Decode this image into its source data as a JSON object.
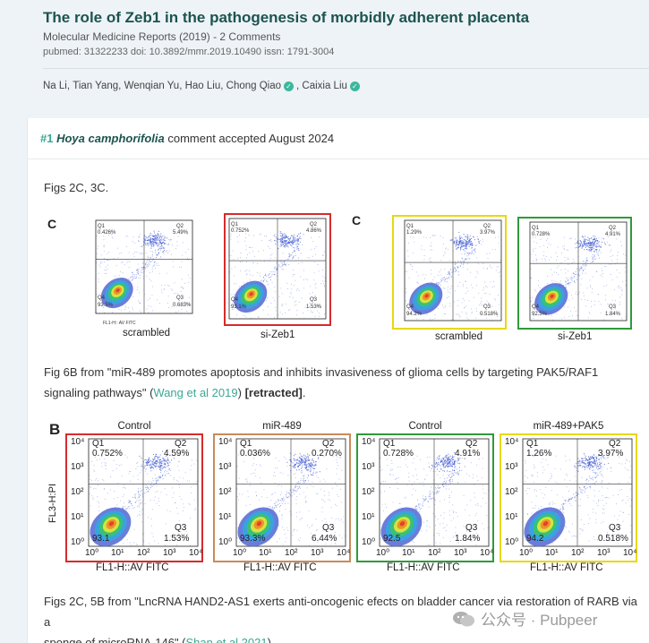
{
  "paper": {
    "title": "The role of Zeb1 in the pathogenesis of morbidly adherent placenta",
    "meta1": "Molecular Medicine Reports (2019) - 2 Comments",
    "meta2": "pubmed: 31322233  doi: 10.3892/mmr.2019.10490  issn: 1791-3004",
    "authors": [
      "Na Li,",
      "Tian Yang,",
      "Wenqian Yu,",
      "Hao Liu,",
      "Chong Qiao",
      ", Caixia Liu"
    ]
  },
  "comment": {
    "number": "#1",
    "user": "Hoya camphorifolia",
    "status": "comment accepted August 2024",
    "p1": "Figs 2C, 3C.",
    "p2a": "Fig 6B from \"miR-489 promotes apoptosis and inhibits invasiveness of glioma cells by targeting PAK5/RAF1",
    "p2b": "signaling pathways\" (",
    "p2link": "Wang et al 2019",
    "p2c": ") ",
    "p2bold": "[retracted]",
    "p2d": ".",
    "p3a": "Figs 2C, 5B from \"LncRNA HAND2-AS1 exerts anti-oncogenic efects on bladder cancer via restoration of RARB via a",
    "p3b": "sponge of microRNA-146\" (",
    "p3link": "Shan et al 2021",
    "p3c": ")."
  },
  "figure1": {
    "letterLeft": "C",
    "letterRight": "C",
    "panels": [
      {
        "caption": "scrambled",
        "q1": "Q1",
        "q1v": "0.426%",
        "q2": "Q2",
        "q2v": "5.49%",
        "q3": "Q3",
        "q3v": "0.683%",
        "q4": "Q4",
        "q4v": "93.5%",
        "border": "none"
      },
      {
        "caption": "si-Zeb1",
        "q1": "Q1",
        "q1v": "0.752%",
        "q2": "Q2",
        "q2v": "4.86%",
        "q3": "Q3",
        "q3v": "1.53%",
        "q4": "Q4",
        "q4v": "93.1%",
        "border": "#d62b2b"
      },
      {
        "caption": "scrambled",
        "q1": "Q1",
        "q1v": "1.29%",
        "q2": "Q2",
        "q2v": "3.97%",
        "q3": "Q3",
        "q3v": "0.518%",
        "q4": "Q4",
        "q4v": "94.2%",
        "border": "#e8d80e"
      },
      {
        "caption": "si-Zeb1",
        "q1": "Q1",
        "q1v": "0.728%",
        "q2": "Q2",
        "q2v": "4.91%",
        "q3": "Q3",
        "q3v": "1.84%",
        "q4": "Q4",
        "q4v": "92.5%",
        "border": "#2f9a3a"
      }
    ],
    "xaxis": "FL1-H:: AV FITC",
    "yaxis": "FL3-H:: PI"
  },
  "figure2": {
    "letter": "B",
    "panels": [
      {
        "title": "Control",
        "q1": "Q1",
        "q1v": "0.752%",
        "q2": "Q2",
        "q2v": "4.59%",
        "q3": "Q3",
        "q3v": "1.53%",
        "q4v": "93.1",
        "border": "#d62b2b"
      },
      {
        "title": "miR-489",
        "q1": "Q1",
        "q1v": "0.036%",
        "q2": "Q2",
        "q2v": "0.270%",
        "q3": "Q3",
        "q3v": "6.44%",
        "q4v": "93.3%",
        "border": "#c98a5a"
      },
      {
        "title": "Control",
        "q1": "Q1",
        "q1v": "0.728%",
        "q2": "Q2",
        "q2v": "4.91%",
        "q3": "Q3",
        "q3v": "1.84%",
        "q4v": "92.5",
        "border": "#2f9a3a"
      },
      {
        "title": "miR-489+PAK5",
        "q1": "Q1",
        "q1v": "1.26%",
        "q2": "Q2",
        "q2v": "3.97%",
        "q3": "Q3",
        "q3v": "0.518%",
        "q4v": "94.2",
        "border": "#e8d80e"
      }
    ],
    "xaxis": "FL1-H::AV FITC",
    "yaxis": "FL3-H:PI",
    "yticks": [
      "10⁴",
      "10³",
      "10²",
      "10¹",
      "10⁰"
    ],
    "xticks": [
      "10⁰",
      "10¹",
      "10²",
      "10³",
      "10⁴"
    ]
  },
  "watermark": "公众号 · Pubpeer"
}
